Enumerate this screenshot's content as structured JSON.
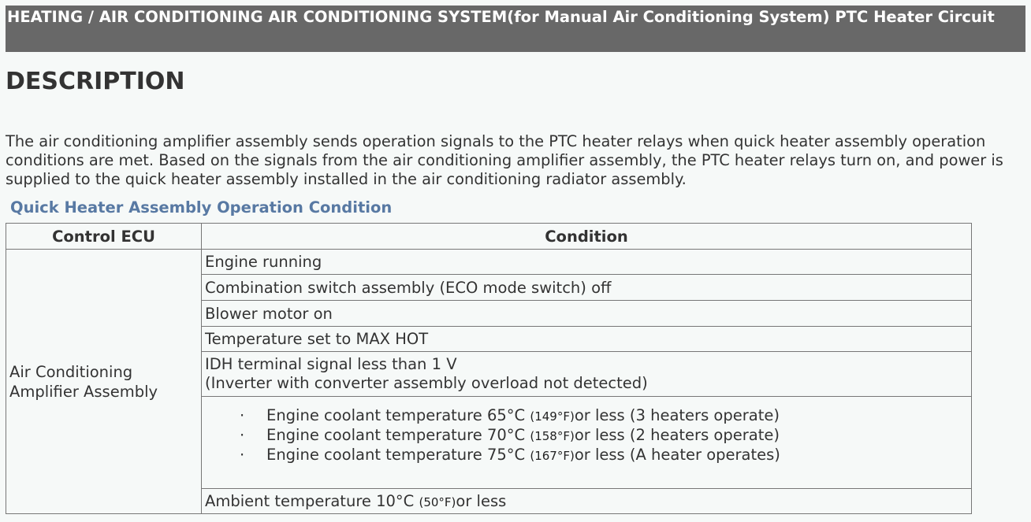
{
  "header": {
    "title": " HEATING / AIR CONDITIONING  AIR CONDITIONING SYSTEM(for Manual Air Conditioning System)  PTC Heater Circuit"
  },
  "section_title": "DESCRIPTION",
  "description": "The air conditioning amplifier assembly sends operation signals to the PTC heater relays when quick heater assembly operation conditions are met. Based on the signals from the air conditioning amplifier assembly, the PTC heater relays turn on, and power is supplied to the quick heater assembly installed in the air conditioning radiator assembly.",
  "subheading": "Quick Heater Assembly Operation Condition",
  "table": {
    "headers": [
      "Control ECU",
      "Condition"
    ],
    "ecu": "Air Conditioning Amplifier Assembly",
    "conditions": [
      "Engine running",
      "Combination switch assembly (ECO mode switch) off",
      "Blower motor on",
      "Temperature set to MAX HOT"
    ],
    "idh": [
      "IDH terminal signal less than 1 V",
      "(Inverter with converter assembly overload not detected)"
    ],
    "coolant": [
      {
        "bullet": "·",
        "main": "Engine coolant temperature 65°C",
        "f": "(149°F)",
        "rest": "or less (3 heaters operate)"
      },
      {
        "bullet": "·",
        "main": "Engine coolant temperature 70°C",
        "f": "(158°F)",
        "rest": "or less (2 heaters operate)"
      },
      {
        "bullet": "·",
        "main": "Engine coolant temperature 75°C",
        "f": "(167°F)",
        "rest": "or less (A heater operates)"
      }
    ],
    "ambient": {
      "main": "Ambient temperature 10°C",
      "f": "(50°F)",
      "rest": "or less"
    }
  }
}
